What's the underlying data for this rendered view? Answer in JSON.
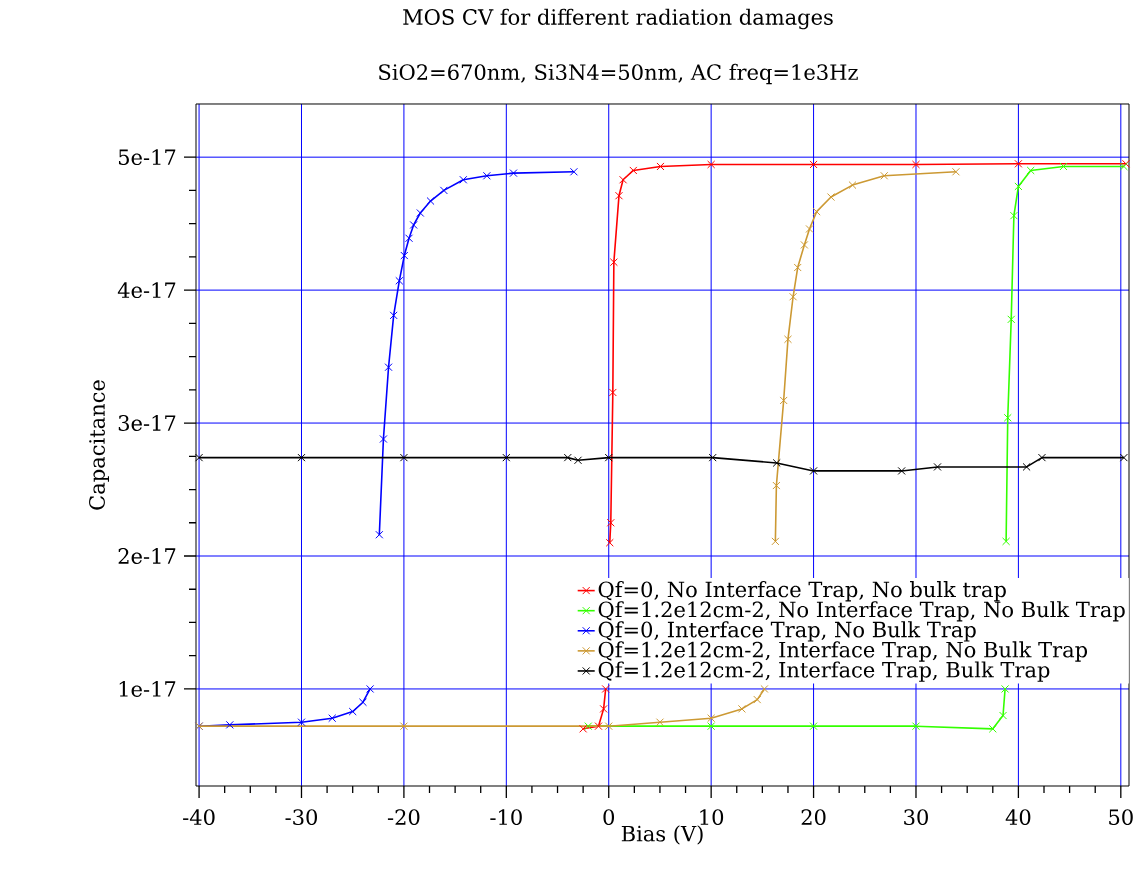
{
  "chart_data": {
    "type": "line",
    "title": "MOS CV for different radiation damages",
    "subtitle": "SiO2=670nm, Si3N4=50nm, AC freq=1e3Hz",
    "xlabel": "Bias (V)",
    "ylabel": "Capacitance",
    "xlim": [
      -40.3,
      50.8
    ],
    "ylim": [
      2.7e-18,
      5.4e-17
    ],
    "xticks": [
      -40,
      -30,
      -20,
      -10,
      0,
      10,
      20,
      30,
      40,
      50
    ],
    "yticks": [
      {
        "value": 1e-17,
        "label": "1e-17"
      },
      {
        "value": 2e-17,
        "label": "2e-17"
      },
      {
        "value": 3e-17,
        "label": "3e-17"
      },
      {
        "value": 4e-17,
        "label": "4e-17"
      },
      {
        "value": 5e-17,
        "label": "5e-17"
      }
    ],
    "grid": true,
    "legend": "bottom right",
    "marker": "cross",
    "line_style": "solid",
    "series": [
      {
        "name": "Qf=0, No Interface Trap, No bulk trap",
        "color": "#ff0000",
        "x": [
          -2.5,
          -1,
          -0.5,
          -0.3,
          0,
          0.1,
          0.2,
          0.4,
          0.5,
          1.0,
          1.4,
          2.4,
          5.05,
          10,
          20,
          30,
          40,
          50.5
        ],
        "values": [
          7e-18,
          7.2e-18,
          8.5e-18,
          1e-17,
          null,
          2.1e-17,
          2.25e-17,
          3.23e-17,
          4.21e-17,
          4.71e-17,
          4.83e-17,
          4.9e-17,
          4.93e-17,
          4.945e-17,
          4.945e-17,
          4.945e-17,
          4.95e-17,
          4.95e-17
        ]
      },
      {
        "name": "Qf=1.2e12cm-2, No Interface Trap, No Bulk Trap",
        "color": "#33ff00",
        "x": [
          -2,
          10,
          20,
          30,
          37.5,
          38.5,
          38.7,
          38.75,
          38.8,
          38.96,
          39.3,
          39.56,
          40.0,
          41.2,
          44.4,
          50.3
        ],
        "values": [
          7.2e-18,
          7.2e-18,
          7.2e-18,
          7.2e-18,
          7e-18,
          8e-18,
          1e-17,
          null,
          2.11e-17,
          3.04e-17,
          3.78e-17,
          4.56e-17,
          4.78e-17,
          4.9e-17,
          4.93e-17,
          4.93e-17
        ]
      },
      {
        "name": "Qf=0, Interface Trap, No Bulk Trap",
        "color": "#0000ff",
        "x": [
          -40,
          -37,
          -30,
          -27,
          -25,
          -24,
          -23.3,
          -23,
          -22.4,
          -22.0,
          -21.5,
          -21.0,
          -20.45,
          -19.96,
          -19.5,
          -19.05,
          -18.4,
          -17.4,
          -16.1,
          -14.2,
          -11.9,
          -9.3,
          -3.4
        ],
        "values": [
          7.2e-18,
          7.3e-18,
          7.5e-18,
          7.8e-18,
          8.3e-18,
          9e-18,
          1e-17,
          null,
          2.16e-17,
          2.88e-17,
          3.42e-17,
          3.81e-17,
          4.07e-17,
          4.26e-17,
          4.39e-17,
          4.49e-17,
          4.58e-17,
          4.67e-17,
          4.75e-17,
          4.83e-17,
          4.86e-17,
          4.88e-17,
          4.89e-17
        ]
      },
      {
        "name": "Qf=1.2e12cm-2, Interface Trap, No Bulk Trap",
        "color": "#cc9933",
        "x": [
          -40,
          -20,
          0,
          5,
          10,
          13,
          14.5,
          15.2,
          15.5,
          16.27,
          16.37,
          17.08,
          17.5,
          18.0,
          18.45,
          19.1,
          19.6,
          20.3,
          21.7,
          23.8,
          26.9,
          33.9
        ],
        "values": [
          7.2e-18,
          7.2e-18,
          7.2e-18,
          7.5e-18,
          7.8e-18,
          8.5e-18,
          9.2e-18,
          1e-17,
          null,
          2.11e-17,
          2.53e-17,
          3.17e-17,
          3.63e-17,
          3.95e-17,
          4.17e-17,
          4.34e-17,
          4.46e-17,
          4.59e-17,
          4.7e-17,
          4.79e-17,
          4.86e-17,
          4.89e-17
        ]
      },
      {
        "name": "Qf=1.2e12cm-2, Interface Trap, Bulk Trap",
        "color": "#000000",
        "x": [
          -40,
          -30,
          -20,
          -10,
          -4,
          -3,
          0,
          10.15,
          16.4,
          20.0,
          28.6,
          32.1,
          40.8,
          42.3,
          50.3
        ],
        "values": [
          2.74e-17,
          2.74e-17,
          2.74e-17,
          2.74e-17,
          2.74e-17,
          2.72e-17,
          2.74e-17,
          2.74e-17,
          2.7e-17,
          2.64e-17,
          2.64e-17,
          2.67e-17,
          2.67e-17,
          2.74e-17,
          2.74e-17
        ]
      }
    ]
  }
}
